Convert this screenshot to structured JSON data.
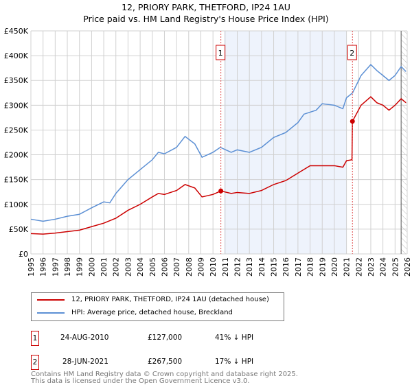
{
  "chart_data": {
    "type": "line",
    "title": "12, PRIORY PARK, THETFORD, IP24 1AU",
    "subtitle": "Price paid vs. HM Land Registry's House Price Index (HPI)",
    "xlim": [
      1995,
      2026
    ],
    "ylim": [
      0,
      450000
    ],
    "x_ticks": [
      "1995",
      "1996",
      "1997",
      "1998",
      "1999",
      "2000",
      "2001",
      "2002",
      "2003",
      "2004",
      "2005",
      "2006",
      "2007",
      "2008",
      "2009",
      "2010",
      "2011",
      "2012",
      "2013",
      "2014",
      "2015",
      "2016",
      "2017",
      "2018",
      "2019",
      "2020",
      "2021",
      "2022",
      "2023",
      "2024",
      "2025",
      "2026"
    ],
    "y_ticks": [
      {
        "v": 0,
        "label": "£0"
      },
      {
        "v": 50000,
        "label": "£50K"
      },
      {
        "v": 100000,
        "label": "£100K"
      },
      {
        "v": 150000,
        "label": "£150K"
      },
      {
        "v": 200000,
        "label": "£200K"
      },
      {
        "v": 250000,
        "label": "£250K"
      },
      {
        "v": 300000,
        "label": "£300K"
      },
      {
        "v": 350000,
        "label": "£350K"
      },
      {
        "v": 400000,
        "label": "£400K"
      },
      {
        "v": 450000,
        "label": "£450K"
      }
    ],
    "grid": true,
    "shaded_range": [
      2010.9,
      2021.0
    ],
    "hatched_from": 2025.5,
    "series": [
      {
        "name": "12, PRIORY PARK, THETFORD, IP24 1AU (detached house)",
        "color": "#cc0000",
        "x": [
          1995,
          1996,
          1997,
          1998,
          1999,
          2000,
          2001,
          2002,
          2003,
          2004,
          2005,
          2005.5,
          2006,
          2007,
          2007.7,
          2008.5,
          2009.1,
          2010,
          2010.65,
          2011.5,
          2012,
          2013,
          2014,
          2015,
          2016,
          2017,
          2018,
          2019,
          2020,
          2020.7,
          2021,
          2021.45,
          2021.49,
          2022.2,
          2023,
          2023.5,
          2024,
          2024.5,
          2025,
          2025.5,
          2025.9
        ],
        "y": [
          41000,
          40000,
          42000,
          45000,
          48000,
          55000,
          62000,
          72000,
          88000,
          100000,
          115000,
          122000,
          120000,
          128000,
          140000,
          133000,
          115000,
          120000,
          127000,
          122000,
          124000,
          122000,
          128000,
          140000,
          148000,
          163000,
          178000,
          178000,
          178000,
          175000,
          188000,
          190000,
          267500,
          300000,
          317000,
          305000,
          300000,
          290000,
          300000,
          313000,
          305000
        ]
      },
      {
        "name": "HPI: Average price, detached house, Breckland",
        "color": "#5b8fd4",
        "x": [
          1995,
          1996,
          1997,
          1998,
          1999,
          2000,
          2001,
          2001.5,
          2002,
          2003,
          2004,
          2005,
          2005.5,
          2006,
          2007,
          2007.7,
          2008.5,
          2009.1,
          2010,
          2010.6,
          2011.5,
          2012,
          2013,
          2014,
          2015,
          2016,
          2017,
          2017.5,
          2018.5,
          2019,
          2020,
          2020.7,
          2021,
          2021.5,
          2022.2,
          2023,
          2023.5,
          2024,
          2024.5,
          2025,
          2025.5,
          2025.9
        ],
        "y": [
          70000,
          66000,
          70000,
          76000,
          80000,
          93000,
          105000,
          103000,
          122000,
          150000,
          170000,
          190000,
          205000,
          202000,
          215000,
          237000,
          222000,
          195000,
          205000,
          215000,
          205000,
          210000,
          205000,
          215000,
          235000,
          245000,
          265000,
          282000,
          290000,
          303000,
          300000,
          293000,
          315000,
          325000,
          360000,
          382000,
          370000,
          360000,
          350000,
          360000,
          378000,
          368000
        ]
      }
    ],
    "sales": [
      {
        "id": "1",
        "x": 2010.65,
        "y": 127000,
        "date": "24-AUG-2010",
        "price": "£127,000",
        "hpi": "41% ↓ HPI"
      },
      {
        "id": "2",
        "x": 2021.49,
        "y": 267500,
        "date": "28-JUN-2021",
        "price": "£267,500",
        "hpi": "17% ↓ HPI"
      }
    ]
  },
  "footer": [
    "Contains HM Land Registry data © Crown copyright and database right 2025.",
    "This data is licensed under the Open Government Licence v3.0."
  ]
}
